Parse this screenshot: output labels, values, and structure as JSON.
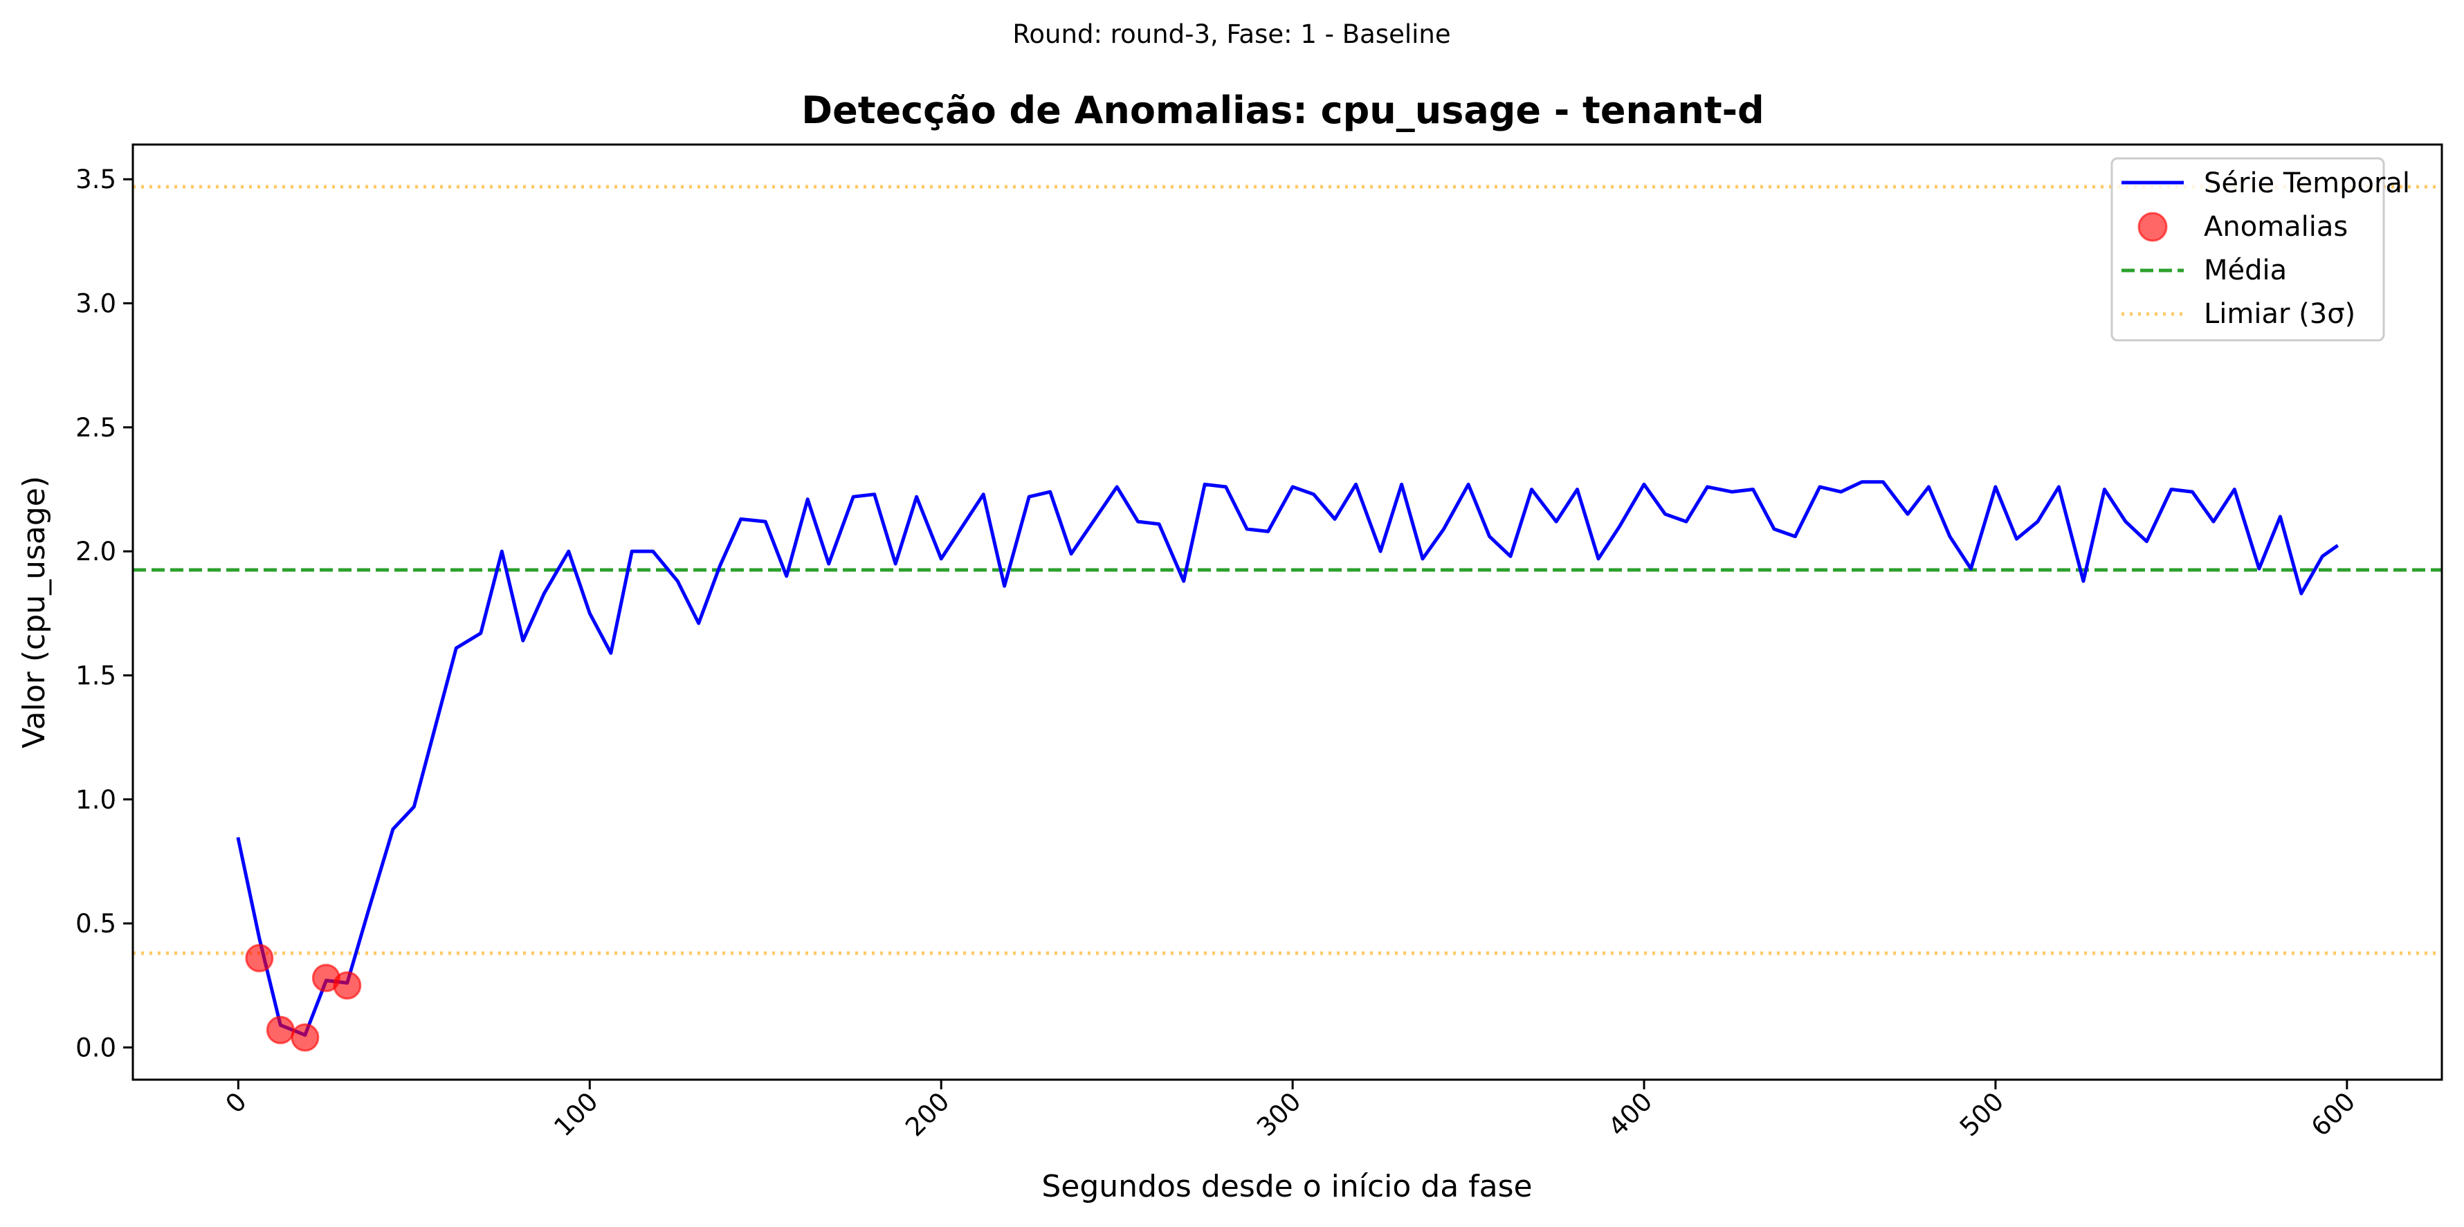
{
  "chart_data": {
    "type": "line",
    "suptitle": "Round: round-3, Fase: 1 - Baseline",
    "title": "Detecção de Anomalias: cpu_usage - tenant-d",
    "xlabel": "Segundos desde o início da fase",
    "ylabel": "Valor (cpu_usage)",
    "xlim": [
      -30,
      627
    ],
    "ylim": [
      -0.13,
      3.64
    ],
    "xticks": [
      0,
      100,
      200,
      300,
      400,
      500,
      600
    ],
    "yticks": [
      0.0,
      0.5,
      1.0,
      1.5,
      2.0,
      2.5,
      3.0,
      3.5
    ],
    "xtick_labels": [
      "0",
      "100",
      "200",
      "300",
      "400",
      "500",
      "600"
    ],
    "ytick_labels": [
      "0.0",
      "0.5",
      "1.0",
      "1.5",
      "2.0",
      "2.5",
      "3.0",
      "3.5"
    ],
    "legend_position": "upper right",
    "grid": false,
    "series": {
      "name": "Série Temporal",
      "color": "#0000ff",
      "x": [
        0,
        6,
        12,
        19,
        25,
        31,
        37,
        44,
        50,
        56,
        62,
        69,
        75,
        81,
        87,
        94,
        100,
        106,
        112,
        118,
        125,
        131,
        137,
        143,
        150,
        156,
        162,
        168,
        175,
        181,
        187,
        193,
        200,
        212,
        218,
        225,
        231,
        237,
        250,
        256,
        262,
        269,
        275,
        281,
        287,
        293,
        300,
        306,
        312,
        318,
        325,
        331,
        337,
        343,
        350,
        356,
        362,
        368,
        375,
        381,
        387,
        393,
        400,
        406,
        412,
        418,
        425,
        431,
        437,
        443,
        450,
        456,
        462,
        468,
        475,
        481,
        487,
        493,
        500,
        506,
        512,
        518,
        525,
        531,
        537,
        543,
        550,
        556,
        562,
        568,
        575,
        581,
        587,
        593,
        597
      ],
      "y": [
        0.84,
        0.44,
        0.09,
        0.05,
        0.27,
        0.26,
        0.55,
        0.88,
        0.97,
        1.29,
        1.61,
        1.67,
        2.0,
        1.64,
        1.83,
        2.0,
        1.75,
        1.59,
        2.0,
        2.0,
        1.88,
        1.71,
        1.94,
        2.13,
        2.12,
        1.9,
        2.21,
        1.95,
        2.22,
        2.23,
        1.95,
        2.22,
        1.97,
        2.23,
        1.86,
        2.22,
        2.24,
        1.99,
        2.26,
        2.12,
        2.11,
        1.88,
        2.27,
        2.26,
        2.09,
        2.08,
        2.26,
        2.23,
        2.13,
        2.27,
        2.0,
        2.27,
        1.97,
        2.09,
        2.27,
        2.06,
        1.98,
        2.25,
        2.12,
        2.25,
        1.97,
        2.1,
        2.27,
        2.15,
        2.12,
        2.26,
        2.24,
        2.25,
        2.09,
        2.06,
        2.26,
        2.24,
        2.28,
        2.28,
        2.15,
        2.26,
        2.06,
        1.93,
        2.26,
        2.05,
        2.12,
        2.26,
        1.88,
        2.25,
        2.12,
        2.04,
        2.25,
        2.24,
        2.12,
        2.25,
        1.93,
        2.14,
        1.83,
        1.98,
        2.02
      ]
    },
    "anomalies": {
      "name": "Anomalias",
      "color": "#ff0000",
      "x": [
        6,
        12,
        19,
        25,
        31
      ],
      "y": [
        0.36,
        0.07,
        0.04,
        0.28,
        0.25
      ]
    },
    "mean": {
      "name": "Média",
      "value": 1.925,
      "color": "#2ca02c"
    },
    "thresholds": {
      "name": "Limiar (3σ)",
      "upper": 3.47,
      "lower": 0.38,
      "color": "#ffa500"
    }
  }
}
